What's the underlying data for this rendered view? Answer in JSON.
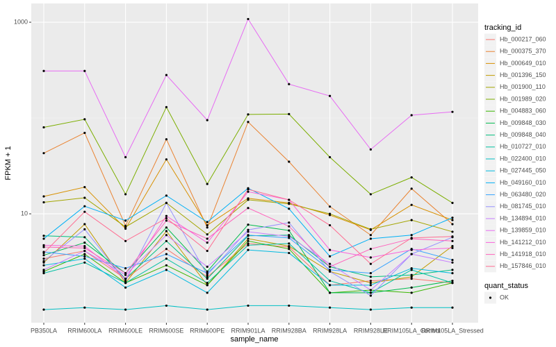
{
  "chart_data": {
    "type": "line",
    "x_label": "sample_name",
    "y_label": "FPKM + 1",
    "categories": [
      "PB350LA",
      "RRIM600LA",
      "RRIM600LE",
      "RRIM600SE",
      "RRIM600PE",
      "RRIM901LA",
      "RRIM928BA",
      "RRIM928LA",
      "RRIM928LE",
      "RRIM105LA_Control",
      "RRIM105LA_Stressed"
    ],
    "log_y": true,
    "ylim": [
      0.73,
      1570
    ],
    "yticks": [
      10,
      1000
    ],
    "grid": true,
    "legend_title": "tracking_id",
    "point_legend_title": "quant_status",
    "point_legend_label": "OK",
    "point_color": "#000000",
    "series": [
      {
        "name": "Hb_000217_060",
        "color": "#F8766D",
        "values": [
          3.4,
          4.1,
          2.1,
          4.3,
          2.2,
          4.9,
          4.5,
          1.8,
          2.0,
          2.1,
          1.9
        ]
      },
      {
        "name": "Hb_000375_370",
        "color": "#EA8331",
        "values": [
          43,
          70,
          7.5,
          60,
          7.2,
          91,
          35,
          11.9,
          6.0,
          18.3,
          7.8
        ]
      },
      {
        "name": "Hb_000649_010",
        "color": "#D89000",
        "values": [
          15.2,
          19,
          7.0,
          37,
          7.6,
          14.5,
          13,
          9.7,
          6.8,
          12.4,
          8.6
        ]
      },
      {
        "name": "Hb_001396_150",
        "color": "#C09B00",
        "values": [
          3.1,
          7.8,
          1.9,
          6.6,
          1.8,
          5.5,
          4.6,
          2.5,
          1.9,
          2.2,
          4.6
        ]
      },
      {
        "name": "Hb_001900_110",
        "color": "#A3A500",
        "values": [
          13.2,
          14.7,
          7.3,
          13,
          6.1,
          14,
          12.7,
          10,
          6.9,
          8.6,
          6.5
        ]
      },
      {
        "name": "Hb_001989_020",
        "color": "#7CAE00",
        "values": [
          80,
          97,
          16,
          130,
          20.5,
          109,
          110,
          39,
          16,
          24,
          13
        ]
      },
      {
        "name": "Hb_004883_060",
        "color": "#39B600",
        "values": [
          2.5,
          3.8,
          1.9,
          2.9,
          1.8,
          5.2,
          4.3,
          1.5,
          1.6,
          1.5,
          1.9
        ]
      },
      {
        "name": "Hb_009848_030",
        "color": "#00BB4E",
        "values": [
          3.7,
          5.0,
          2.4,
          7.2,
          2.5,
          7.7,
          6.7,
          1.5,
          1.5,
          1.7,
          2.0
        ]
      },
      {
        "name": "Hb_009848_040",
        "color": "#00BF7D",
        "values": [
          5.9,
          5.7,
          2.1,
          5.2,
          2.1,
          5.9,
          6.0,
          2.8,
          2.2,
          2.3,
          2.6
        ]
      },
      {
        "name": "Hb_010727_010",
        "color": "#00C1A3",
        "values": [
          2.4,
          3.1,
          1.9,
          3.4,
          1.9,
          4.7,
          4.9,
          2.0,
          1.5,
          2.6,
          1.9
        ]
      },
      {
        "name": "Hb_022400_010",
        "color": "#00BFC4",
        "values": [
          1.0,
          1.05,
          1.0,
          1.1,
          1.0,
          1.1,
          1.1,
          1.05,
          1.0,
          1.05,
          1.05
        ]
      },
      {
        "name": "Hb_027445_050",
        "color": "#00BAE0",
        "values": [
          2.9,
          3.4,
          1.7,
          2.6,
          1.5,
          4.2,
          3.9,
          1.8,
          1.8,
          2.7,
          2.4
        ]
      },
      {
        "name": "Hb_049160_010",
        "color": "#00B0F6",
        "values": [
          5.5,
          12,
          8.5,
          15.5,
          8.2,
          18.5,
          11.3,
          3.6,
          5.5,
          6.0,
          9.1
        ]
      },
      {
        "name": "Hb_063480_020",
        "color": "#35A2FF",
        "values": [
          4.0,
          3.6,
          2.7,
          3.8,
          2.4,
          6.0,
          5.6,
          2.6,
          2.4,
          4.3,
          3.3
        ]
      },
      {
        "name": "Hb_081745_010",
        "color": "#9590FF",
        "values": [
          3.2,
          6.9,
          2.0,
          13,
          2.3,
          6.8,
          8.1,
          2.5,
          1.4,
          3.8,
          5.7
        ]
      },
      {
        "name": "Hb_134894_010",
        "color": "#C77CFF",
        "values": [
          2.6,
          4.1,
          2.3,
          6.0,
          2.8,
          6.5,
          5.8,
          3.0,
          1.6,
          3.8,
          3.1
        ]
      },
      {
        "name": "Hb_139859_010",
        "color": "#E76BF3",
        "values": [
          310,
          310,
          39,
          281,
          95,
          1080,
          226,
          170,
          47,
          107,
          116
        ]
      },
      {
        "name": "Hb_141212_010",
        "color": "#FA62DB",
        "values": [
          4.7,
          4.6,
          2.1,
          9.5,
          5.0,
          17,
          14,
          4.2,
          3.5,
          4.2,
          4.4
        ]
      },
      {
        "name": "Hb_141918_010",
        "color": "#FF62BC",
        "values": [
          4.5,
          4.4,
          2.4,
          8.5,
          5.5,
          11.5,
          7.4,
          2.8,
          4.3,
          5.5,
          5.2
        ]
      },
      {
        "name": "Hb_157846_010",
        "color": "#FF6C91",
        "values": [
          3.9,
          10.5,
          5.2,
          9.0,
          4.1,
          18,
          14,
          7.6,
          3.0,
          5.6,
          5.8
        ]
      }
    ]
  }
}
